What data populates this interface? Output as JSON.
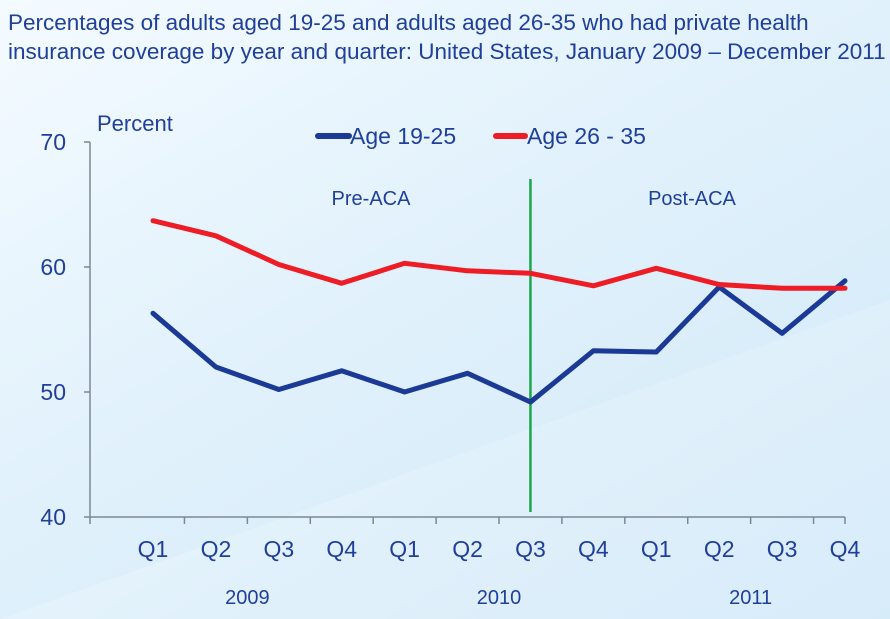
{
  "title": "Percentages of adults aged 19-25 and adults aged 26-35 who had private health insurance coverage by year and quarter: United States, January 2009 – December 2011",
  "colors": {
    "series_19_25": "#1b3a96",
    "series_26_35": "#ee1c24",
    "divider": "#1aa64a",
    "text_blue": "#1f3f9b"
  },
  "chart_data": {
    "type": "line",
    "title": "Percentages of adults aged 19-25 and adults aged 26-35 who had private health insurance coverage by year and quarter: United States, January 2009 – December 2011",
    "ylabel": "Percent",
    "xlabel": "",
    "ylim": [
      40,
      70
    ],
    "yticks": [
      "40",
      "50",
      "60",
      "70"
    ],
    "categories": [
      "Q1",
      "Q2",
      "Q3",
      "Q4",
      "Q1",
      "Q2",
      "Q3",
      "Q4",
      "Q1",
      "Q2",
      "Q3",
      "Q4"
    ],
    "years": [
      {
        "label": "2009",
        "start": 0,
        "end": 3
      },
      {
        "label": "2010",
        "start": 4,
        "end": 7
      },
      {
        "label": "2011",
        "start": 8,
        "end": 11
      }
    ],
    "series": [
      {
        "name": "Age 19-25",
        "color": "#1b3a96",
        "values": [
          56.3,
          52.0,
          50.2,
          51.7,
          50.0,
          51.5,
          49.2,
          53.3,
          53.2,
          58.4,
          54.7,
          58.9
        ]
      },
      {
        "name": "Age 26 - 35",
        "color": "#ee1c24",
        "values": [
          63.7,
          62.5,
          60.2,
          58.7,
          60.3,
          59.7,
          59.5,
          58.5,
          59.9,
          58.6,
          58.3,
          58.3
        ]
      }
    ],
    "divider_after_index": 6,
    "annotations": [
      "Pre-ACA",
      "Post-ACA"
    ],
    "legend_position": "top",
    "grid": false
  }
}
